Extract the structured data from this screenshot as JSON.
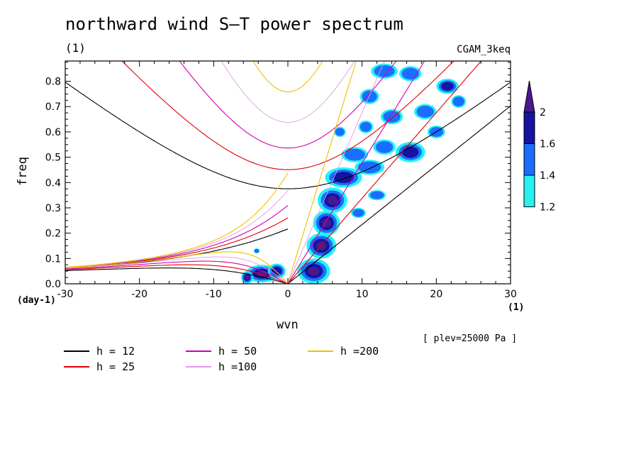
{
  "title": "northward wind S–T power spectrum",
  "unit_top": "(1)",
  "model_label": "CGAM_3keq",
  "y_unit": "(day-1)",
  "x_unit": "(1)",
  "plev_label": "[ plev=25000 Pa ]",
  "chart_data": {
    "type": "heatmap",
    "title": "northward wind S–T power spectrum",
    "xlabel": "wvn",
    "ylabel": "freq",
    "xlim": [
      -30,
      30
    ],
    "ylim": [
      0,
      0.88
    ],
    "x_ticks": [
      "-30",
      "-20",
      "-10",
      "0",
      "10",
      "20",
      "30"
    ],
    "x_tick_values": [
      -30,
      -20,
      -10,
      0,
      10,
      20,
      30
    ],
    "y_ticks": [
      "0.0",
      "0.1",
      "0.2",
      "0.3",
      "0.4",
      "0.5",
      "0.6",
      "0.7",
      "0.8"
    ],
    "y_tick_values": [
      0,
      0.1,
      0.2,
      0.3,
      0.4,
      0.5,
      0.6,
      0.7,
      0.8
    ],
    "colorbar": {
      "levels": [
        "1.2",
        "1.4",
        "1.6",
        "2"
      ],
      "level_values": [
        1.2,
        1.4,
        1.6,
        2.0
      ],
      "colors": [
        "#26f2f2",
        "#1a6eff",
        "#1414a0",
        "#4a1a8c"
      ]
    },
    "dispersion_curves": [
      {
        "name": "h = 12",
        "h": 12,
        "color": "#000000"
      },
      {
        "name": "h = 25",
        "h": 25,
        "color": "#e00000"
      },
      {
        "name": "h = 50",
        "h": 50,
        "color": "#d000b0"
      },
      {
        "name": "h =100",
        "h": 100,
        "color": "#e09ae8"
      },
      {
        "name": "h =200",
        "h": 200,
        "color": "#f0c000"
      }
    ],
    "power_blobs": [
      {
        "x": -3.5,
        "y": 0.04,
        "rx": 2.2,
        "ry": 0.035,
        "level": 3
      },
      {
        "x": -1.5,
        "y": 0.05,
        "rx": 1.2,
        "ry": 0.03,
        "level": 2
      },
      {
        "x": -5.5,
        "y": 0.025,
        "rx": 0.8,
        "ry": 0.025,
        "level": 3
      },
      {
        "x": -4.2,
        "y": 0.13,
        "rx": 0.4,
        "ry": 0.01,
        "level": 1
      },
      {
        "x": 3.5,
        "y": 0.05,
        "rx": 2.2,
        "ry": 0.05,
        "level": 3
      },
      {
        "x": 4.5,
        "y": 0.15,
        "rx": 2.0,
        "ry": 0.05,
        "level": 3
      },
      {
        "x": 5.2,
        "y": 0.24,
        "rx": 1.8,
        "ry": 0.05,
        "level": 3
      },
      {
        "x": 6.0,
        "y": 0.33,
        "rx": 2.0,
        "ry": 0.05,
        "level": 3
      },
      {
        "x": 7.5,
        "y": 0.42,
        "rx": 2.5,
        "ry": 0.04,
        "level": 2
      },
      {
        "x": 9.0,
        "y": 0.51,
        "rx": 1.8,
        "ry": 0.03,
        "level": 1
      },
      {
        "x": 11.0,
        "y": 0.46,
        "rx": 2.0,
        "ry": 0.03,
        "level": 1
      },
      {
        "x": 13.0,
        "y": 0.54,
        "rx": 1.5,
        "ry": 0.03,
        "level": 1
      },
      {
        "x": 16.5,
        "y": 0.52,
        "rx": 2.0,
        "ry": 0.04,
        "level": 2
      },
      {
        "x": 14.0,
        "y": 0.66,
        "rx": 1.5,
        "ry": 0.03,
        "level": 1
      },
      {
        "x": 18.5,
        "y": 0.68,
        "rx": 1.5,
        "ry": 0.03,
        "level": 1
      },
      {
        "x": 21.5,
        "y": 0.78,
        "rx": 1.5,
        "ry": 0.03,
        "level": 2
      },
      {
        "x": 16.5,
        "y": 0.83,
        "rx": 1.5,
        "ry": 0.03,
        "level": 1
      },
      {
        "x": 13.0,
        "y": 0.84,
        "rx": 1.8,
        "ry": 0.03,
        "level": 1
      },
      {
        "x": 11.0,
        "y": 0.74,
        "rx": 1.3,
        "ry": 0.03,
        "level": 1
      },
      {
        "x": 10.5,
        "y": 0.62,
        "rx": 1.0,
        "ry": 0.025,
        "level": 1
      },
      {
        "x": 20.0,
        "y": 0.6,
        "rx": 1.2,
        "ry": 0.025,
        "level": 1
      },
      {
        "x": 12.0,
        "y": 0.35,
        "rx": 1.2,
        "ry": 0.02,
        "level": 1
      },
      {
        "x": 9.5,
        "y": 0.28,
        "rx": 1.0,
        "ry": 0.02,
        "level": 1
      },
      {
        "x": 23.0,
        "y": 0.72,
        "rx": 1.0,
        "ry": 0.025,
        "level": 1
      },
      {
        "x": 7.0,
        "y": 0.6,
        "rx": 0.8,
        "ry": 0.02,
        "level": 1
      }
    ]
  }
}
